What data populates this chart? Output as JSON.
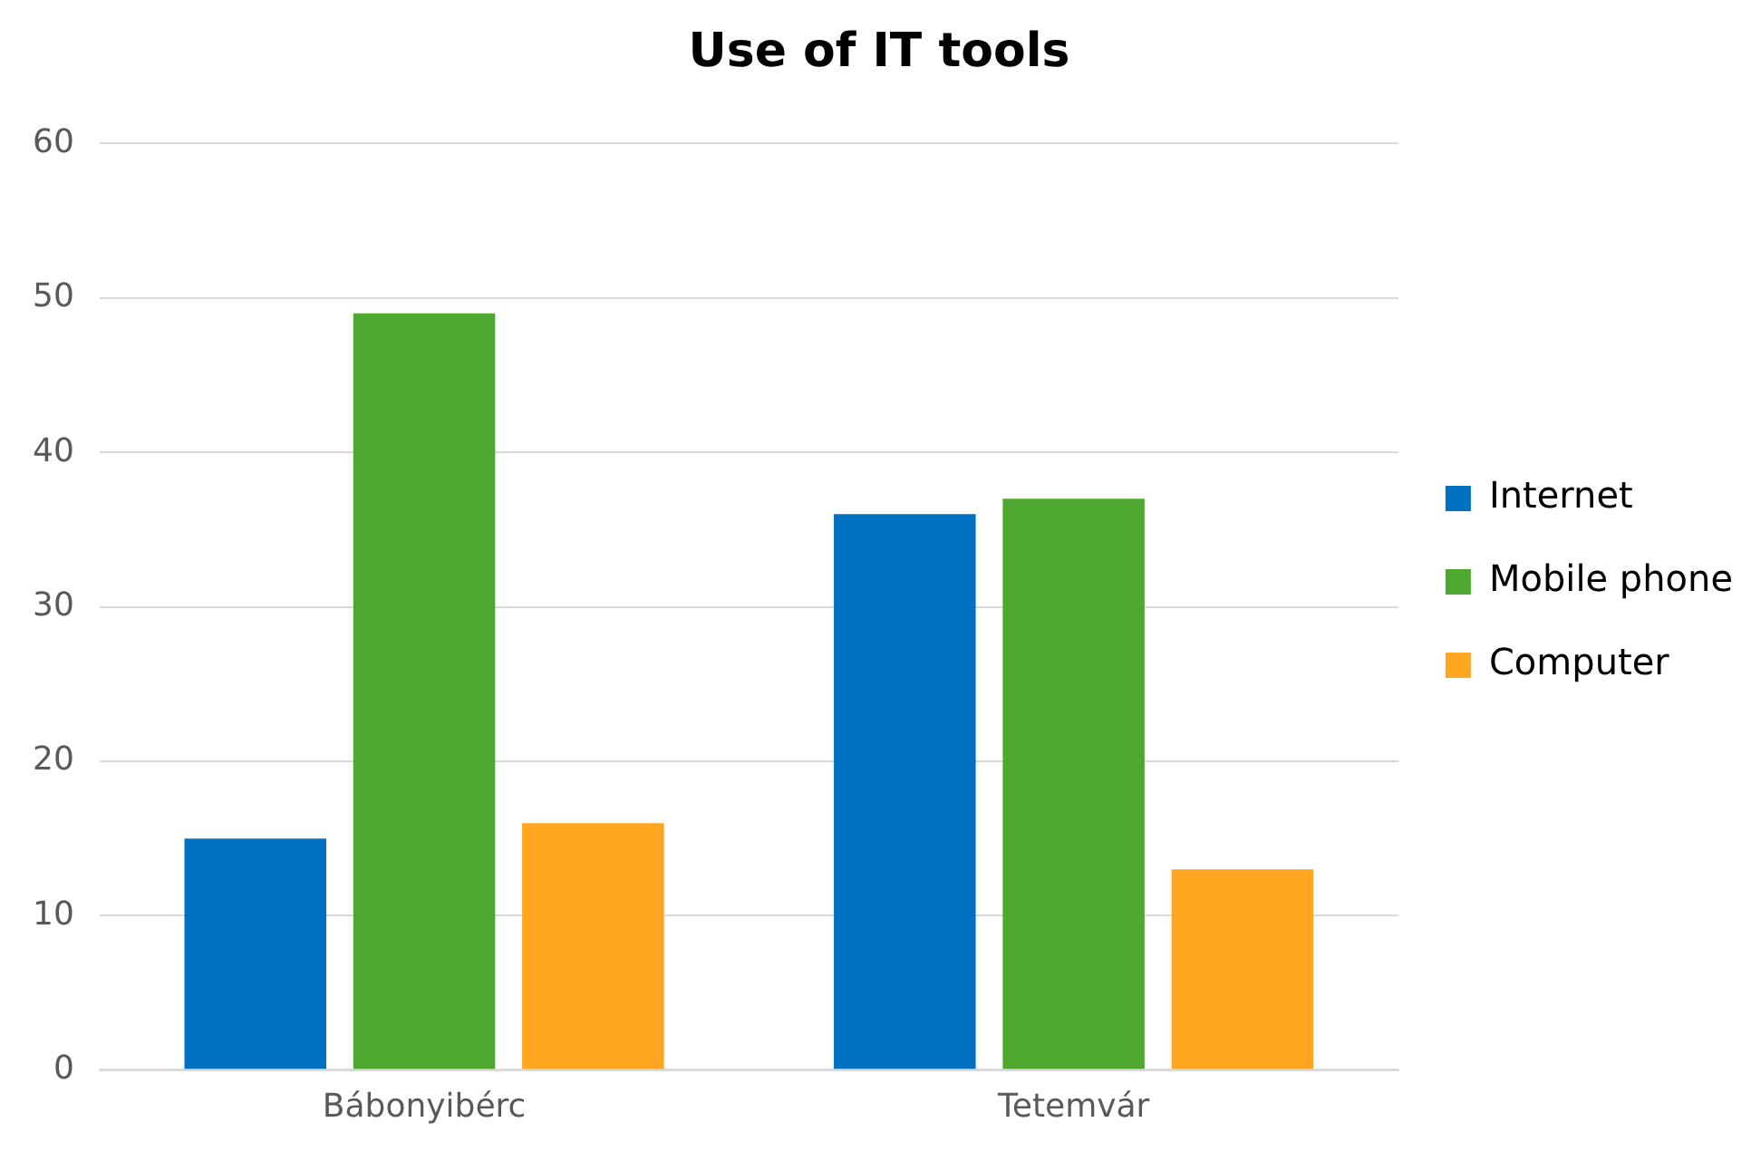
{
  "chart_data": {
    "type": "bar",
    "title": "Use of IT tools",
    "categories": [
      "Bábonyibérc",
      "Tetemvár"
    ],
    "series": [
      {
        "name": "Internet",
        "color": "#0070c0",
        "values": [
          15,
          36
        ]
      },
      {
        "name": "Mobile phone",
        "color": "#4ea72e",
        "values": [
          49,
          37
        ]
      },
      {
        "name": "Computer",
        "color": "#ffa51f",
        "values": [
          16,
          13
        ]
      }
    ],
    "ylim": [
      0,
      60
    ],
    "yticks": [
      0,
      10,
      20,
      30,
      40,
      50,
      60
    ],
    "grid": "y",
    "legend": "right"
  }
}
